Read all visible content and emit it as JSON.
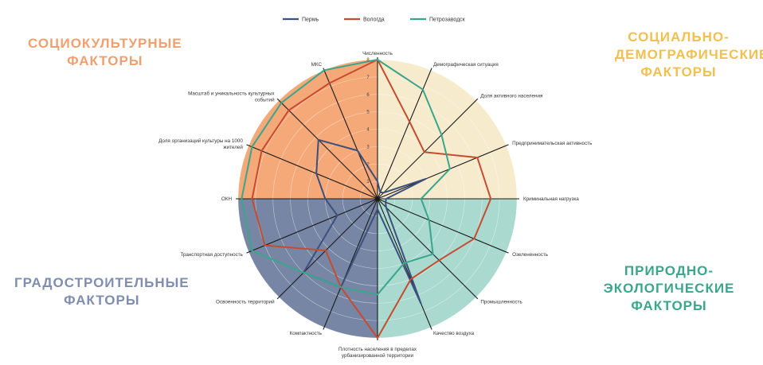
{
  "chart_data": {
    "type": "radar",
    "title": "",
    "axes": [
      "Численность",
      "Демографическая ситуация",
      "Доля активного населения",
      "Предпринимательская активность",
      "Криминальная нагрузка",
      "Озелененность",
      "Промышленность",
      "Качество воздуха",
      "Плотность населения в пределах урбанизированной территории",
      "Компактность",
      "Освоенность территорий",
      "Транспортная доступность",
      "ОКН",
      "Доля организаций культуры на 1000 жителей",
      "Масштаб и уникальность культурных событий",
      "МКС"
    ],
    "ticks": [
      "1",
      "2",
      "3",
      "4",
      "5",
      "6",
      "7",
      "8"
    ],
    "rmax": 8,
    "series": [
      {
        "name": "Пермь",
        "color": "#3d4f7c",
        "values": [
          1.0,
          0.4,
          0.5,
          3.0,
          0.5,
          0.5,
          0.7,
          6.5,
          0.6,
          5.5,
          6.0,
          2.5,
          3.0,
          3.8,
          4.8,
          3.0
        ]
      },
      {
        "name": "Вологда",
        "color": "#c74b2f",
        "values": [
          8.0,
          4.8,
          3.8,
          6.2,
          6.5,
          6.0,
          5.0,
          5.0,
          8.0,
          5.5,
          4.2,
          7.0,
          7.2,
          7.2,
          7.2,
          7.2
        ]
      },
      {
        "name": "Петрозаводск",
        "color": "#3aa68c",
        "values": [
          8.0,
          6.8,
          5.2,
          4.5,
          2.5,
          3.2,
          4.5,
          4.0,
          5.5,
          5.5,
          6.0,
          7.8,
          7.8,
          7.8,
          7.8,
          8.0
        ]
      }
    ],
    "legend_position": "top-center",
    "quadrants": [
      {
        "name": "Социокультурные факторы",
        "color": "#f5a878",
        "text_color": "#f0a070"
      },
      {
        "name": "Социально-демографические факторы",
        "color": "#f6ebcc",
        "text_color": "#f0c050"
      },
      {
        "name": "Природно-экологические факторы",
        "color": "#a9d9cf",
        "text_color": "#3aa68c"
      },
      {
        "name": "Градостроительные факторы",
        "color": "#7686a4",
        "text_color": "#7f8db0"
      }
    ]
  }
}
